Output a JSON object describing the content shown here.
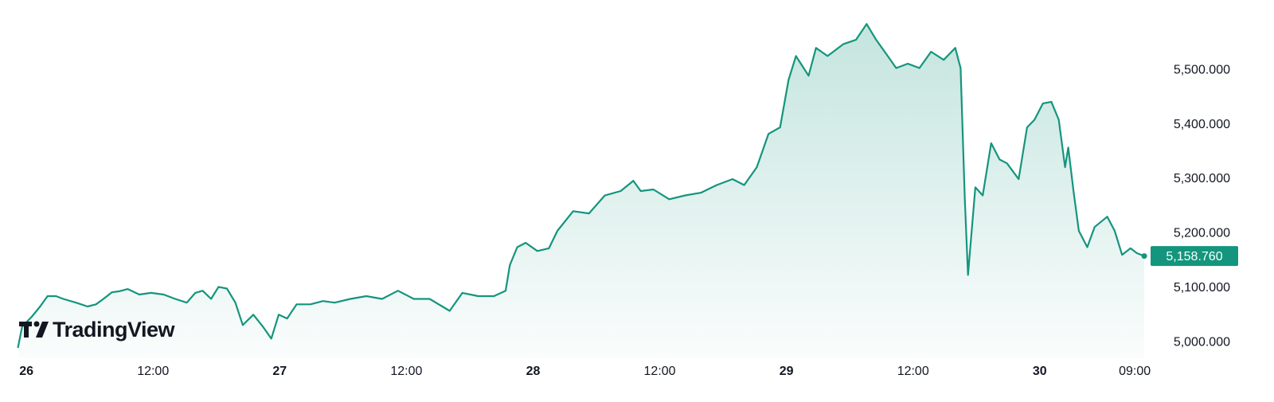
{
  "chart_data": {
    "type": "area",
    "color": "#14957d",
    "watermark": "TradingView",
    "x": [
      -0.8,
      -0.4,
      0.5,
      1.3,
      2.0,
      2.8,
      3.5,
      4.7,
      5.8,
      6.6,
      7.3,
      8.1,
      8.8,
      9.6,
      10.7,
      11.8,
      13.0,
      14.1,
      15.2,
      16.0,
      16.7,
      17.5,
      18.2,
      19.0,
      19.8,
      20.5,
      21.5,
      22.4,
      23.2,
      23.9,
      24.7,
      25.6,
      26.9,
      28.1,
      29.2,
      30.7,
      32.2,
      33.7,
      35.2,
      36.7,
      38.2,
      39.4,
      40.1,
      41.3,
      42.8,
      44.3,
      45.4,
      45.8,
      46.5,
      47.3,
      48.4,
      49.5,
      50.3,
      51.8,
      53.3,
      54.8,
      56.3,
      57.5,
      58.2,
      59.4,
      60.9,
      62.4,
      63.9,
      65.4,
      66.9,
      68.0,
      69.2,
      70.3,
      71.4,
      72.2,
      72.9,
      74.1,
      74.8,
      75.9,
      77.4,
      78.6,
      79.6,
      80.5,
      81.6,
      82.4,
      83.5,
      84.6,
      85.7,
      86.9,
      88.0,
      88.5,
      88.9,
      89.2,
      89.9,
      90.6,
      91.4,
      92.2,
      92.9,
      94.0,
      94.8,
      95.5,
      96.3,
      97.1,
      97.8,
      98.4,
      98.7,
      99.2,
      99.7,
      100.5,
      101.2,
      102.4,
      103.1,
      103.8,
      104.6,
      105.2,
      105.9
    ],
    "values": [
      4990,
      5029,
      5047,
      5066,
      5085,
      5085,
      5080,
      5073,
      5066,
      5070,
      5080,
      5092,
      5094,
      5098,
      5088,
      5091,
      5088,
      5080,
      5073,
      5091,
      5095,
      5080,
      5102,
      5099,
      5073,
      5032,
      5051,
      5029,
      5007,
      5051,
      5044,
      5070,
      5070,
      5076,
      5073,
      5080,
      5085,
      5080,
      5095,
      5080,
      5080,
      5066,
      5058,
      5091,
      5085,
      5085,
      5095,
      5142,
      5175,
      5183,
      5168,
      5173,
      5205,
      5241,
      5237,
      5270,
      5278,
      5297,
      5278,
      5281,
      5263,
      5270,
      5275,
      5289,
      5300,
      5289,
      5322,
      5383,
      5395,
      5482,
      5526,
      5490,
      5541,
      5526,
      5548,
      5556,
      5585,
      5556,
      5526,
      5504,
      5512,
      5504,
      5534,
      5519,
      5541,
      5504,
      5263,
      5124,
      5285,
      5270,
      5366,
      5336,
      5329,
      5300,
      5395,
      5409,
      5439,
      5442,
      5409,
      5322,
      5358,
      5278,
      5205,
      5175,
      5212,
      5231,
      5205,
      5161,
      5173,
      5164,
      5158.76
    ],
    "last_price": {
      "value": 5158.76,
      "label": "5,158.760"
    },
    "xlim": [
      -2.5,
      106.5
    ],
    "ylim": [
      4971,
      5629
    ],
    "xticks": [
      {
        "value": 0,
        "label": "26"
      },
      {
        "value": 12,
        "label": "12:00"
      },
      {
        "value": 24,
        "label": "27"
      },
      {
        "value": 36,
        "label": "12:00"
      },
      {
        "value": 48,
        "label": "28"
      },
      {
        "value": 60,
        "label": "12:00"
      },
      {
        "value": 72,
        "label": "29"
      },
      {
        "value": 84,
        "label": "12:00"
      },
      {
        "value": 96,
        "label": "30"
      },
      {
        "value": 105,
        "label": "09:00"
      }
    ],
    "yticks": [
      {
        "value": 5000,
        "label": "5,000.000"
      },
      {
        "value": 5100,
        "label": "5,100.000"
      },
      {
        "value": 5200,
        "label": "5,200.000"
      },
      {
        "value": 5300,
        "label": "5,300.000"
      },
      {
        "value": 5400,
        "label": "5,400.000"
      },
      {
        "value": 5500,
        "label": "5,500.000"
      }
    ],
    "grid": false
  }
}
